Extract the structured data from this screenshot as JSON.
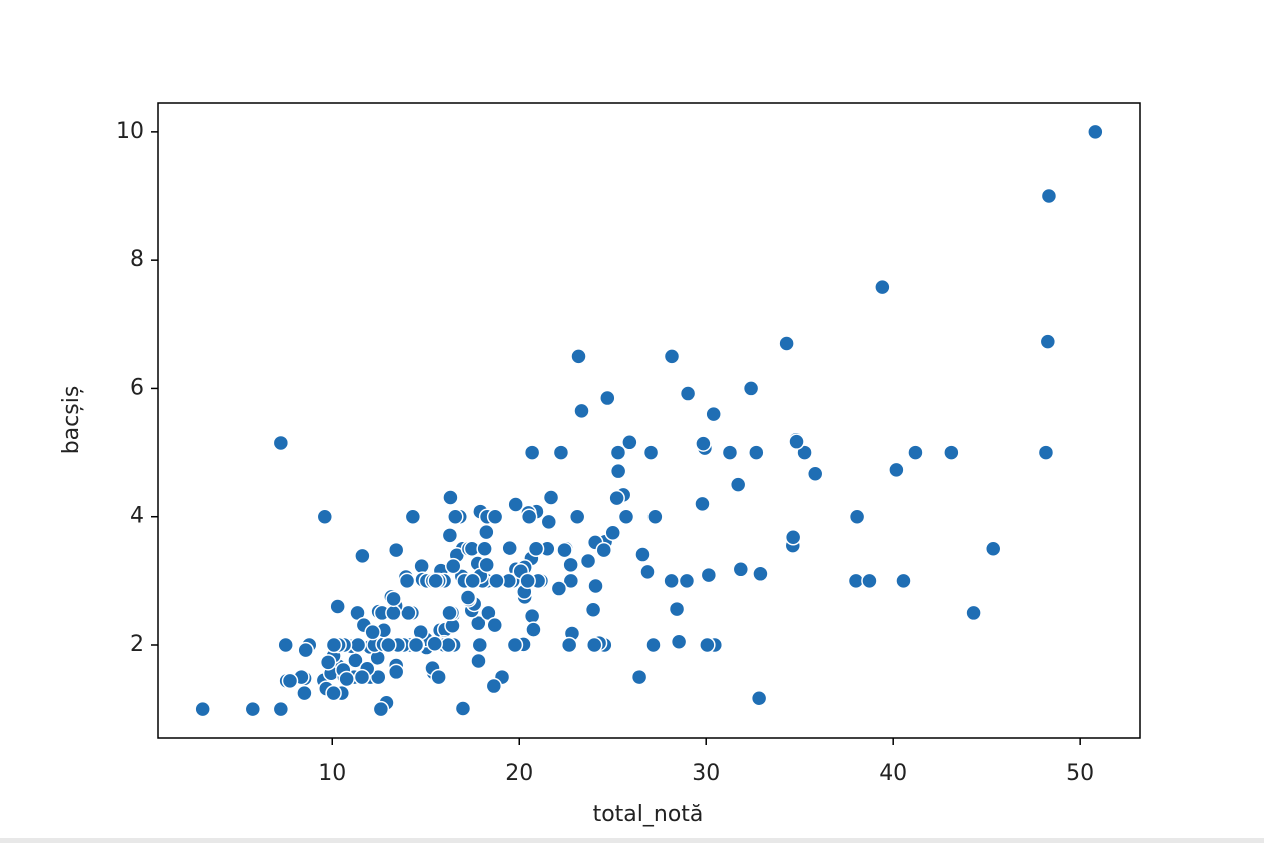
{
  "chart_data": {
    "type": "scatter",
    "x_label": "total_notă",
    "y_label": "bacșiș",
    "color": "#1f6eb4",
    "grid": false,
    "xlim": [
      0.68,
      53.2
    ],
    "ylim": [
      0.55,
      10.45
    ],
    "xticks": [
      10,
      20,
      30,
      40,
      50
    ],
    "yticks": [
      2,
      4,
      6,
      8,
      10
    ],
    "x": [
      16.99,
      10.34,
      21.01,
      23.68,
      24.59,
      25.29,
      8.77,
      26.88,
      15.04,
      14.78,
      10.27,
      35.26,
      15.42,
      18.43,
      14.83,
      21.58,
      10.33,
      16.29,
      16.97,
      20.65,
      17.92,
      20.29,
      15.77,
      39.42,
      19.82,
      17.81,
      13.37,
      12.69,
      21.7,
      19.65,
      9.55,
      18.35,
      15.06,
      20.69,
      17.78,
      24.06,
      16.31,
      16.93,
      18.69,
      31.27,
      16.04,
      17.46,
      13.94,
      9.68,
      30.4,
      18.29,
      22.23,
      32.4,
      28.55,
      18.04,
      12.54,
      10.29,
      34.81,
      9.94,
      25.56,
      19.49,
      38.01,
      26.41,
      11.24,
      48.27,
      20.29,
      13.81,
      11.02,
      18.29,
      17.59,
      20.08,
      16.45,
      3.07,
      20.23,
      15.01,
      12.02,
      17.07,
      26.86,
      25.28,
      14.73,
      10.51,
      17.92,
      27.2,
      22.76,
      17.29,
      19.44,
      16.66,
      10.07,
      32.68,
      15.98,
      34.83,
      13.03,
      18.28,
      24.71,
      21.16,
      28.97,
      22.49,
      5.75,
      16.32,
      22.75,
      40.17,
      27.28,
      12.03,
      21.01,
      12.46,
      11.35,
      15.38,
      44.3,
      22.42,
      20.92,
      15.36,
      20.49,
      25.21,
      18.24,
      14.31,
      14.0,
      7.25,
      38.07,
      23.95,
      25.71,
      17.31,
      29.93,
      10.65,
      12.43,
      24.08,
      11.69,
      13.42,
      14.26,
      15.95,
      12.48,
      29.8,
      8.52,
      14.52,
      11.38,
      22.82,
      19.08,
      20.27,
      11.17,
      12.26,
      18.26,
      8.51,
      10.33,
      14.15,
      16.0,
      13.16,
      17.47,
      34.3,
      41.19,
      27.05,
      16.43,
      8.35,
      18.64,
      11.87,
      9.78,
      7.51,
      14.07,
      13.13,
      17.26,
      24.55,
      19.77,
      29.85,
      48.17,
      25.0,
      13.39,
      16.49,
      21.5,
      12.66,
      16.21,
      13.81,
      17.51,
      24.52,
      20.76,
      31.71,
      10.59,
      10.63,
      50.81,
      15.81,
      7.25,
      31.85,
      16.82,
      32.9,
      17.89,
      14.48,
      9.6,
      34.63,
      34.65,
      23.33,
      45.35,
      23.17,
      40.55,
      20.69,
      20.9,
      30.46,
      18.15,
      23.1,
      15.69,
      19.81,
      28.44,
      15.48,
      16.58,
      7.56,
      10.34,
      43.11,
      13.0,
      13.51,
      18.71,
      12.74,
      13.0,
      16.4,
      20.53,
      16.47,
      26.59,
      38.73,
      24.27,
      12.76,
      30.06,
      25.89,
      48.33,
      13.27,
      28.17,
      12.9,
      28.15,
      11.59,
      7.74,
      30.14,
      12.16,
      13.42,
      8.58,
      15.98,
      13.42,
      16.27,
      10.09,
      20.45,
      13.28,
      22.12,
      24.01,
      15.69,
      11.61,
      10.77,
      15.53,
      10.07,
      12.6,
      32.83,
      35.83,
      29.03,
      27.18,
      22.67,
      17.82,
      18.78
    ],
    "values": [
      1.01,
      1.66,
      3.5,
      3.31,
      3.61,
      4.71,
      2.0,
      3.12,
      1.96,
      3.23,
      1.71,
      5.0,
      1.57,
      3.0,
      3.02,
      3.92,
      1.67,
      3.71,
      3.5,
      3.35,
      4.08,
      2.75,
      2.23,
      7.58,
      3.18,
      2.34,
      2.0,
      2.0,
      4.3,
      3.0,
      1.45,
      2.5,
      3.0,
      2.45,
      3.27,
      3.6,
      2.0,
      3.07,
      2.31,
      5.0,
      2.24,
      2.54,
      3.06,
      1.32,
      5.6,
      3.0,
      5.0,
      6.0,
      2.05,
      3.0,
      2.5,
      2.6,
      5.2,
      1.56,
      4.34,
      3.51,
      3.0,
      1.5,
      1.76,
      6.73,
      3.21,
      2.0,
      1.98,
      3.76,
      2.64,
      3.15,
      2.47,
      1.0,
      2.01,
      2.09,
      1.97,
      3.0,
      3.14,
      5.0,
      2.2,
      1.25,
      3.08,
      4.0,
      3.0,
      2.71,
      3.0,
      3.4,
      1.83,
      5.0,
      2.03,
      5.17,
      2.0,
      4.0,
      5.85,
      3.0,
      3.0,
      3.5,
      1.0,
      4.3,
      3.25,
      4.73,
      4.0,
      1.5,
      3.0,
      1.5,
      2.5,
      3.0,
      2.5,
      3.48,
      4.08,
      1.64,
      4.06,
      4.29,
      3.76,
      4.0,
      3.0,
      1.0,
      4.0,
      2.55,
      4.0,
      3.5,
      5.07,
      1.5,
      1.8,
      2.92,
      2.31,
      1.68,
      2.5,
      2.0,
      2.52,
      4.2,
      1.48,
      2.0,
      2.0,
      2.18,
      1.5,
      2.83,
      1.5,
      2.0,
      3.25,
      1.25,
      2.0,
      2.0,
      2.0,
      2.75,
      3.5,
      6.7,
      5.0,
      5.0,
      2.3,
      1.5,
      1.36,
      1.63,
      1.73,
      2.0,
      2.5,
      2.0,
      2.74,
      2.0,
      2.0,
      5.14,
      5.0,
      3.75,
      2.61,
      2.0,
      3.5,
      2.5,
      2.0,
      2.0,
      3.0,
      3.48,
      2.24,
      4.5,
      1.61,
      2.0,
      10.0,
      3.16,
      5.15,
      3.18,
      4.0,
      3.11,
      2.0,
      2.0,
      4.0,
      3.55,
      3.68,
      5.65,
      3.5,
      6.5,
      3.0,
      5.0,
      3.5,
      2.0,
      3.5,
      4.0,
      1.5,
      4.19,
      2.56,
      2.02,
      4.0,
      1.44,
      2.0,
      5.0,
      2.0,
      2.0,
      4.0,
      2.01,
      2.0,
      2.5,
      4.0,
      3.23,
      3.41,
      3.0,
      2.03,
      2.23,
      2.0,
      5.16,
      9.0,
      2.5,
      6.5,
      1.1,
      3.0,
      1.5,
      1.44,
      3.09,
      2.2,
      3.48,
      1.92,
      3.0,
      1.58,
      2.5,
      2.0,
      3.0,
      2.72,
      2.88,
      2.0,
      3.0,
      3.39,
      1.47,
      3.0,
      1.25,
      1.0,
      1.17,
      4.67,
      5.92,
      2.0,
      2.0,
      1.75,
      3.0
    ]
  }
}
